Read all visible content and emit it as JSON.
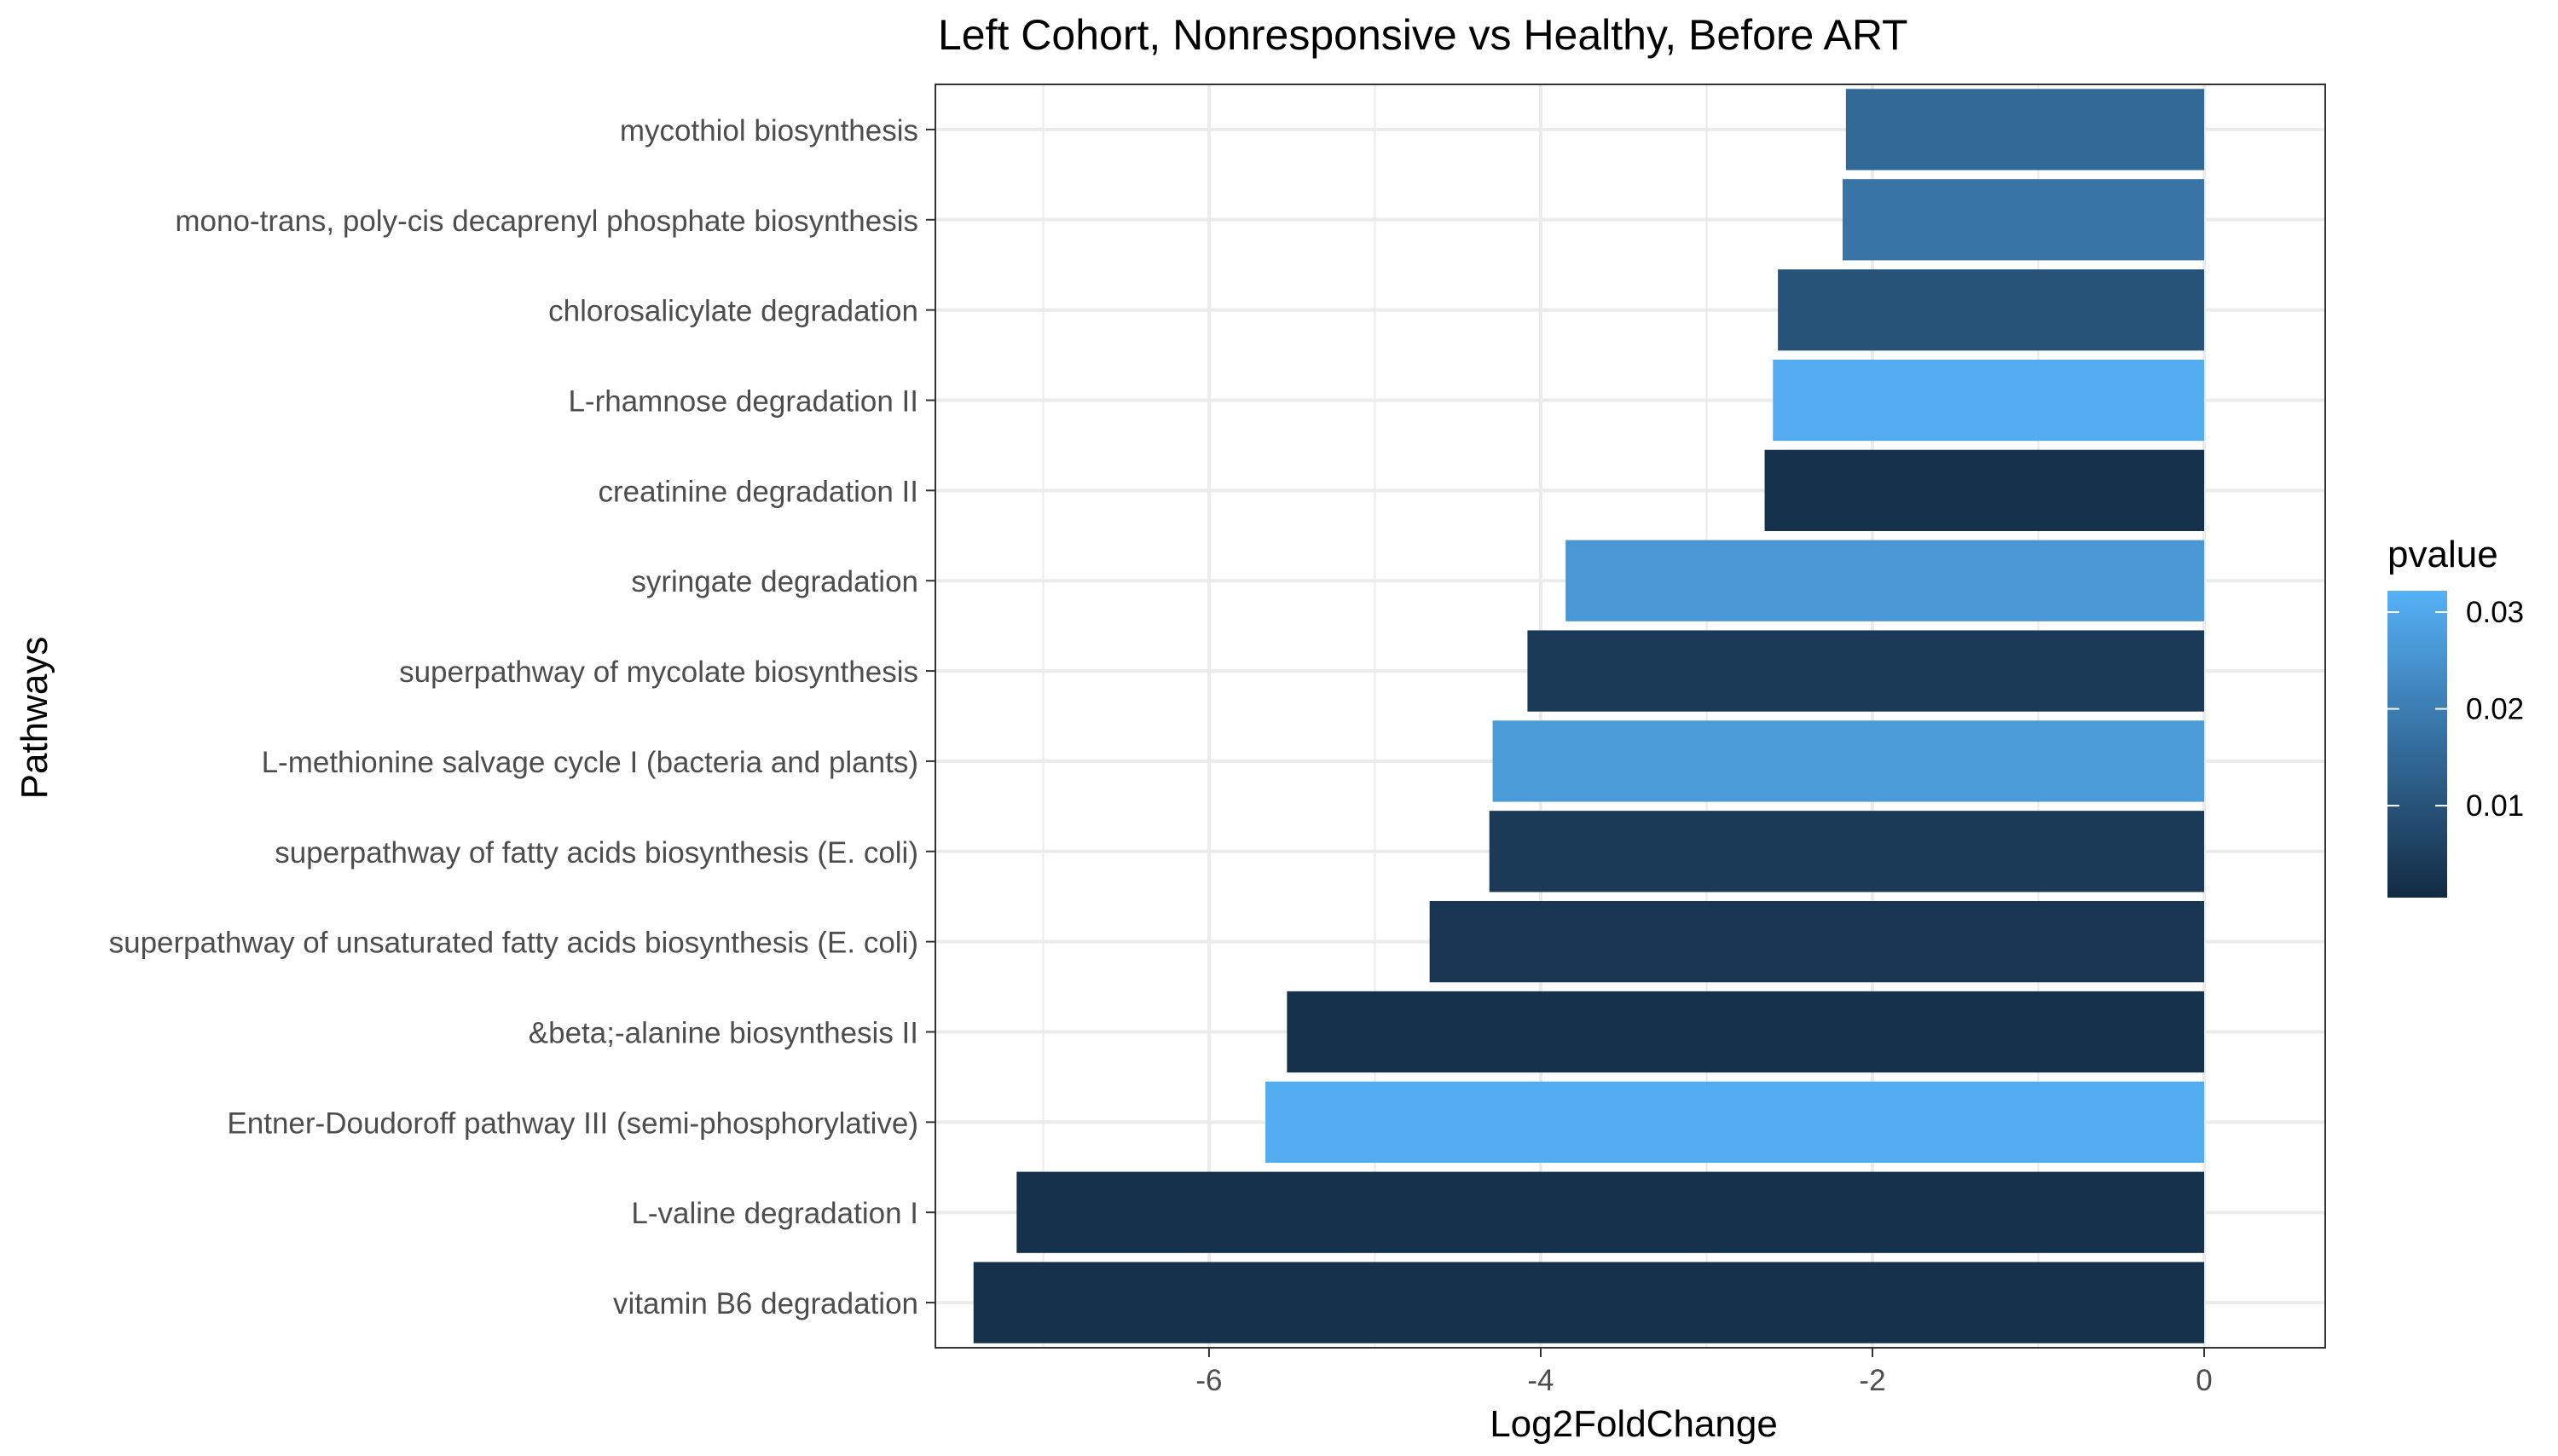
{
  "chart_data": {
    "type": "bar",
    "orientation": "horizontal",
    "title": "Left Cohort, Nonresponsive vs Healthy, Before ART",
    "xlabel": "Log2FoldChange",
    "ylabel": "Pathways",
    "xlim": [
      -7.65,
      0.73
    ],
    "x_ticks": [
      -6,
      -4,
      -2,
      0
    ],
    "x_tick_labels": [
      "-6",
      "-4",
      "-2",
      "0"
    ],
    "grid": true,
    "categories": [
      "mycothiol biosynthesis",
      "mono-trans, poly-cis decaprenyl phosphate biosynthesis",
      "chlorosalicylate degradation",
      "L-rhamnose degradation II",
      "creatinine degradation II",
      "syringate degradation",
      "superpathway of mycolate biosynthesis",
      "L-methionine salvage cycle I (bacteria and plants)",
      "superpathway of fatty acids biosynthesis (E. coli)",
      "superpathway of unsaturated fatty acids biosynthesis (E. coli)",
      "&beta;-alanine biosynthesis II",
      "Entner-Doudoroff pathway III (semi-phosphorylative)",
      "L-valine degradation I",
      "vitamin B6 degradation"
    ],
    "values": [
      -2.16,
      -2.18,
      -2.57,
      -2.6,
      -2.65,
      -3.85,
      -4.08,
      -4.29,
      -4.31,
      -4.67,
      -5.53,
      -5.66,
      -7.16,
      -7.42
    ],
    "pvalues": [
      0.015,
      0.018,
      0.01,
      0.031,
      0.002,
      0.026,
      0.004,
      0.027,
      0.004,
      0.003,
      0.002,
      0.031,
      0.002,
      0.002
    ],
    "legend": {
      "title": "pvalue",
      "position": "right",
      "ticks": [
        0.01,
        0.02,
        0.03
      ],
      "tick_labels": [
        "0.01",
        "0.02",
        "0.03"
      ],
      "range": [
        0.0005,
        0.0322
      ],
      "color_low": "#132b43",
      "color_high": "#56b1f7"
    }
  }
}
